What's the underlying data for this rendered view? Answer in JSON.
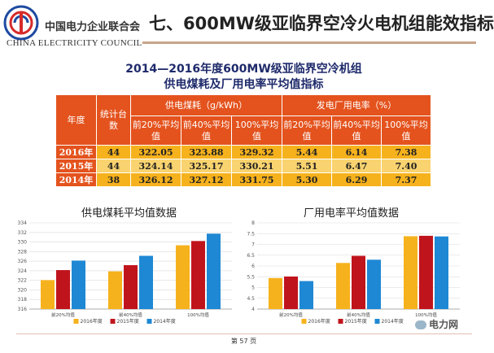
{
  "header": {
    "org_cn": "中国电力企业联合会",
    "org_en": "CHINA ELECTRICITY COUNCIL",
    "title": "七、600MW级亚临界空冷火电机组能效指标"
  },
  "table": {
    "title_line1": "2014—2016年度600MW级亚临界空冷机组",
    "title_line2": "供电煤耗及厂用电率平均值指标",
    "col_year": "年度",
    "col_units": "统计台数",
    "group_coal": "供电煤耗（g/kWh）",
    "group_power": "发电厂用电率（%）",
    "sub_headers": [
      "前20%平均值",
      "前40%平均值",
      "100%平均值",
      "前20%平均值",
      "前40%平均值",
      "100%平均值"
    ],
    "rows": [
      {
        "year": "2016年",
        "units": "44",
        "values": [
          "322.05",
          "323.88",
          "329.32",
          "5.44",
          "6.14",
          "7.38"
        ]
      },
      {
        "year": "2015年",
        "units": "44",
        "values": [
          "324.14",
          "325.17",
          "330.21",
          "5.51",
          "6.47",
          "7.40"
        ]
      },
      {
        "year": "2014年",
        "units": "38",
        "values": [
          "326.12",
          "327.12",
          "331.75",
          "5.30",
          "6.29",
          "7.37"
        ]
      }
    ]
  },
  "chart_data": [
    {
      "type": "bar",
      "title": "供电煤耗平均值数据",
      "categories": [
        "前20%均值",
        "前40%均值",
        "100%均值"
      ],
      "series": [
        {
          "name": "2016年度",
          "color": "#f6b21d",
          "values": [
            322.05,
            323.88,
            329.32
          ]
        },
        {
          "name": "2015年度",
          "color": "#c0141c",
          "values": [
            324.14,
            325.17,
            330.21
          ]
        },
        {
          "name": "2014年度",
          "color": "#1e88d4",
          "values": [
            326.12,
            327.12,
            331.75
          ]
        }
      ],
      "ylim": [
        316,
        334
      ],
      "yticks": [
        "316",
        "318",
        "320",
        "322",
        "324",
        "326",
        "328",
        "330",
        "332",
        "334"
      ],
      "legend": "bottom"
    },
    {
      "type": "bar",
      "title": "厂用电率平均值数据",
      "categories": [
        "前20%均值",
        "前40%均值",
        "100%均值"
      ],
      "series": [
        {
          "name": "2016年度",
          "color": "#f6b21d",
          "values": [
            5.44,
            6.14,
            7.38
          ]
        },
        {
          "name": "2015年度",
          "color": "#c0141c",
          "values": [
            5.51,
            6.47,
            7.4
          ]
        },
        {
          "name": "2014年度",
          "color": "#1e88d4",
          "values": [
            5.3,
            6.29,
            7.37
          ]
        }
      ],
      "ylim": [
        4,
        8
      ],
      "yticks": [
        "4",
        "4.5",
        "5",
        "5.5",
        "6",
        "6.5",
        "7",
        "7.5",
        "8"
      ],
      "legend": "bottom"
    }
  ],
  "footer": {
    "page": "第 57 页",
    "watermark": "电力网"
  }
}
